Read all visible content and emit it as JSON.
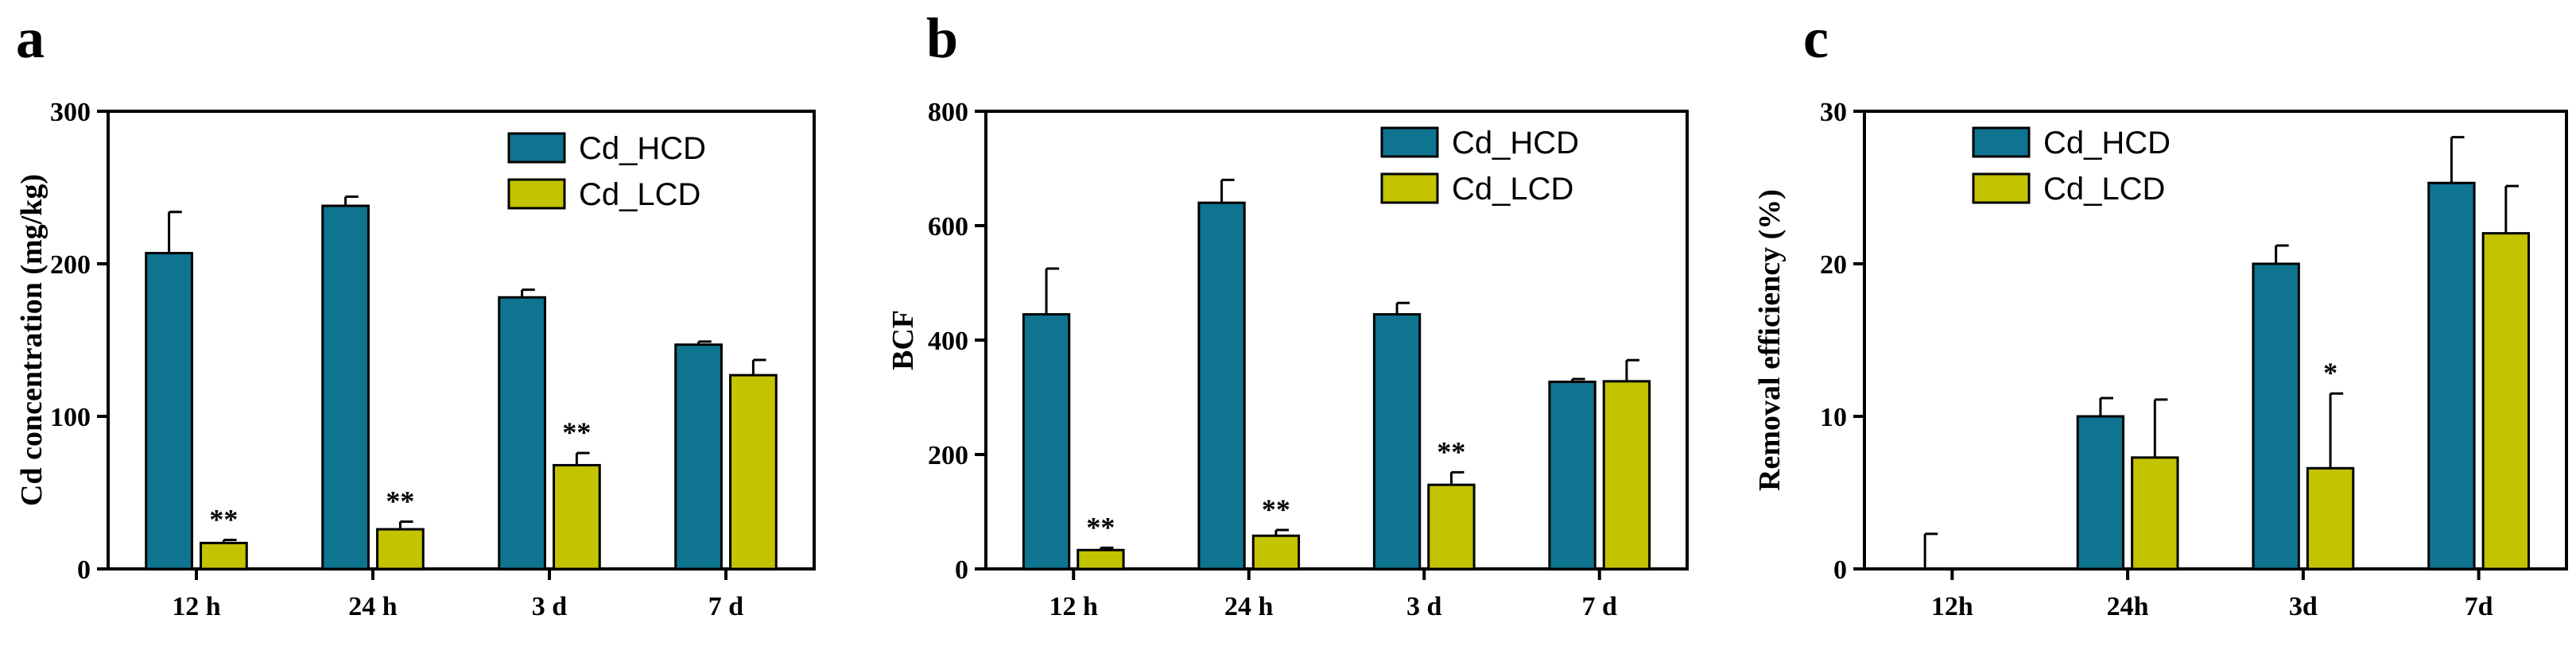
{
  "colors": {
    "hcd": "#0e7490",
    "lcd": "#c3c300",
    "axis": "#000000"
  },
  "chart_data": [
    {
      "type": "bar",
      "panel_label": "a",
      "ylabel": "Cd concentration (mg/kg)",
      "xlabel": "",
      "ylim": [
        0,
        300
      ],
      "yticks": [
        0,
        100,
        200,
        300
      ],
      "categories": [
        "12 h",
        "24 h",
        "3 d",
        "7 d"
      ],
      "legend_position": "top-right",
      "series": [
        {
          "name": "Cd_HCD",
          "color": "#0e7490",
          "values": [
            207,
            238,
            178,
            147
          ],
          "errors": [
            27,
            6,
            5,
            2
          ]
        },
        {
          "name": "Cd_LCD",
          "color": "#c3c300",
          "values": [
            17,
            26,
            68,
            127
          ],
          "errors": [
            2,
            5,
            8,
            10
          ]
        }
      ],
      "annotations": [
        {
          "category": "12 h",
          "series": "Cd_LCD",
          "text": "**"
        },
        {
          "category": "24 h",
          "series": "Cd_LCD",
          "text": "**"
        },
        {
          "category": "3 d",
          "series": "Cd_LCD",
          "text": "**"
        }
      ]
    },
    {
      "type": "bar",
      "panel_label": "b",
      "ylabel": "BCF",
      "xlabel": "",
      "ylim": [
        0,
        800
      ],
      "yticks": [
        0,
        200,
        400,
        600,
        800
      ],
      "categories": [
        "12 h",
        "24 h",
        "3 d",
        "7 d"
      ],
      "legend_position": "top-right",
      "series": [
        {
          "name": "Cd_HCD",
          "color": "#0e7490",
          "values": [
            445,
            640,
            445,
            327
          ],
          "errors": [
            80,
            40,
            20,
            5
          ]
        },
        {
          "name": "Cd_LCD",
          "color": "#c3c300",
          "values": [
            33,
            58,
            147,
            328
          ],
          "errors": [
            4,
            10,
            22,
            37
          ]
        }
      ],
      "annotations": [
        {
          "category": "12 h",
          "series": "Cd_LCD",
          "text": "**"
        },
        {
          "category": "24 h",
          "series": "Cd_LCD",
          "text": "**"
        },
        {
          "category": "3 d",
          "series": "Cd_LCD",
          "text": "**"
        }
      ]
    },
    {
      "type": "bar",
      "panel_label": "c",
      "ylabel": "Removal efficiency (%)",
      "xlabel": "",
      "ylim": [
        0,
        30
      ],
      "yticks": [
        0,
        10,
        20,
        30
      ],
      "categories": [
        "12h",
        "24h",
        "3d",
        "7d"
      ],
      "legend_position": "top-left",
      "series": [
        {
          "name": "Cd_HCD",
          "color": "#0e7490",
          "values": [
            0,
            10,
            20,
            25.3
          ],
          "errors": [
            2.3,
            1.2,
            1.2,
            3
          ]
        },
        {
          "name": "Cd_LCD",
          "color": "#c3c300",
          "values": [
            0,
            7.3,
            6.6,
            22
          ],
          "errors": [
            0,
            3.8,
            4.9,
            3.1
          ]
        }
      ],
      "annotations": [
        {
          "category": "3d",
          "series": "Cd_LCD",
          "text": "*"
        }
      ]
    }
  ]
}
